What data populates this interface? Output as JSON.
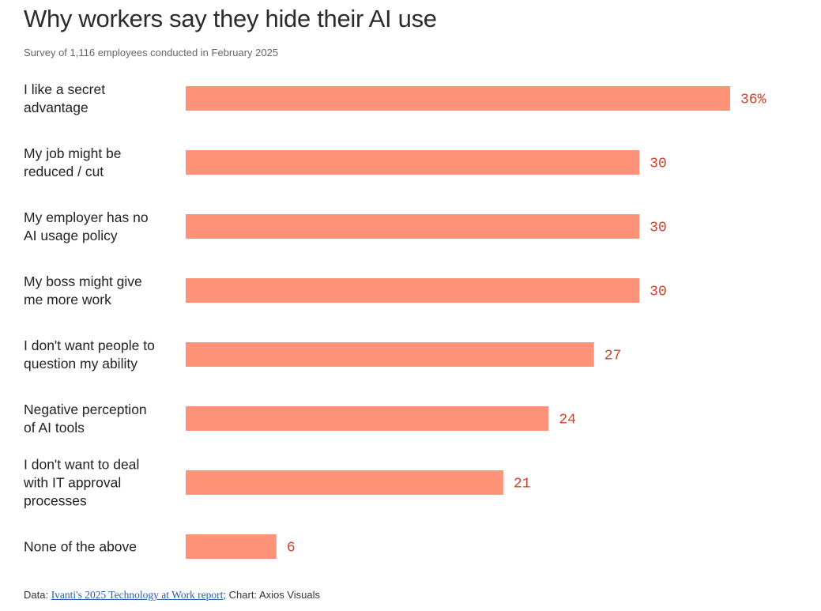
{
  "title": "Why workers say they hide their AI use",
  "subtitle": "Survey of 1,116 employees conducted in February 2025",
  "footer": {
    "data_prefix": "Data: ",
    "source_link": "Ivanti's 2025 Technology at Work report",
    "chart_credit": "; Chart: Axios Visuals"
  },
  "colors": {
    "bar": "#ff937a",
    "value_label": "#d6412a",
    "link": "#2a5db0"
  },
  "chart_data": {
    "type": "bar",
    "orientation": "horizontal",
    "title": "Why workers say they hide their AI use",
    "subtitle": "Survey of 1,116 employees conducted in February 2025",
    "unit": "%",
    "xlim": [
      0,
      36
    ],
    "grid": false,
    "categories": [
      [
        "I like a secret",
        "advantage"
      ],
      [
        "My job might be",
        "reduced / cut"
      ],
      [
        "My employer has no",
        "AI usage policy"
      ],
      [
        "My boss might give",
        "me more work"
      ],
      [
        "I don't want people to",
        "question my ability"
      ],
      [
        "Negative perception",
        "of AI tools"
      ],
      [
        "I don't want to deal",
        "with IT approval",
        "processes"
      ],
      [
        "None of the above"
      ]
    ],
    "values": [
      36,
      30,
      30,
      30,
      27,
      24,
      21,
      6
    ],
    "value_labels": [
      "36%",
      "30",
      "30",
      "30",
      "27",
      "24",
      "21",
      "6"
    ]
  }
}
